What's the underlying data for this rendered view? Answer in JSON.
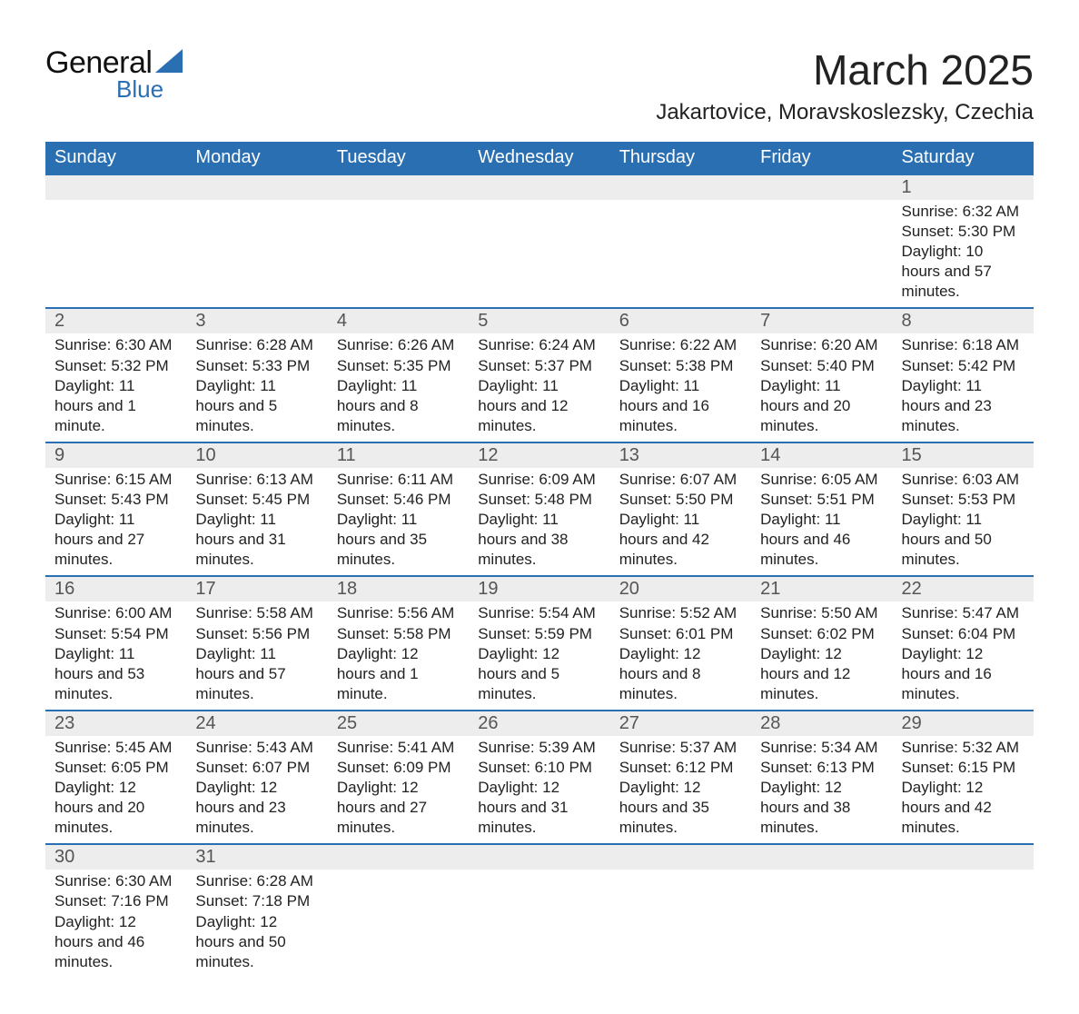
{
  "logo": {
    "text1": "General",
    "text2": "Blue",
    "tri_color": "#2b6fb3"
  },
  "title": {
    "month": "March 2025",
    "location": "Jakartovice, Moravskoslezsky, Czechia"
  },
  "header_bg": "#2b6fb3",
  "header_fg": "#ffffff",
  "row_sep_color": "#2b6fb3",
  "daynum_bg": "#ededed",
  "weekdays": [
    "Sunday",
    "Monday",
    "Tuesday",
    "Wednesday",
    "Thursday",
    "Friday",
    "Saturday"
  ],
  "weeks": [
    [
      null,
      null,
      null,
      null,
      null,
      null,
      {
        "n": "1",
        "sunrise": "6:32 AM",
        "sunset": "5:30 PM",
        "daylight": "10 hours and 57 minutes."
      }
    ],
    [
      {
        "n": "2",
        "sunrise": "6:30 AM",
        "sunset": "5:32 PM",
        "daylight": "11 hours and 1 minute."
      },
      {
        "n": "3",
        "sunrise": "6:28 AM",
        "sunset": "5:33 PM",
        "daylight": "11 hours and 5 minutes."
      },
      {
        "n": "4",
        "sunrise": "6:26 AM",
        "sunset": "5:35 PM",
        "daylight": "11 hours and 8 minutes."
      },
      {
        "n": "5",
        "sunrise": "6:24 AM",
        "sunset": "5:37 PM",
        "daylight": "11 hours and 12 minutes."
      },
      {
        "n": "6",
        "sunrise": "6:22 AM",
        "sunset": "5:38 PM",
        "daylight": "11 hours and 16 minutes."
      },
      {
        "n": "7",
        "sunrise": "6:20 AM",
        "sunset": "5:40 PM",
        "daylight": "11 hours and 20 minutes."
      },
      {
        "n": "8",
        "sunrise": "6:18 AM",
        "sunset": "5:42 PM",
        "daylight": "11 hours and 23 minutes."
      }
    ],
    [
      {
        "n": "9",
        "sunrise": "6:15 AM",
        "sunset": "5:43 PM",
        "daylight": "11 hours and 27 minutes."
      },
      {
        "n": "10",
        "sunrise": "6:13 AM",
        "sunset": "5:45 PM",
        "daylight": "11 hours and 31 minutes."
      },
      {
        "n": "11",
        "sunrise": "6:11 AM",
        "sunset": "5:46 PM",
        "daylight": "11 hours and 35 minutes."
      },
      {
        "n": "12",
        "sunrise": "6:09 AM",
        "sunset": "5:48 PM",
        "daylight": "11 hours and 38 minutes."
      },
      {
        "n": "13",
        "sunrise": "6:07 AM",
        "sunset": "5:50 PM",
        "daylight": "11 hours and 42 minutes."
      },
      {
        "n": "14",
        "sunrise": "6:05 AM",
        "sunset": "5:51 PM",
        "daylight": "11 hours and 46 minutes."
      },
      {
        "n": "15",
        "sunrise": "6:03 AM",
        "sunset": "5:53 PM",
        "daylight": "11 hours and 50 minutes."
      }
    ],
    [
      {
        "n": "16",
        "sunrise": "6:00 AM",
        "sunset": "5:54 PM",
        "daylight": "11 hours and 53 minutes."
      },
      {
        "n": "17",
        "sunrise": "5:58 AM",
        "sunset": "5:56 PM",
        "daylight": "11 hours and 57 minutes."
      },
      {
        "n": "18",
        "sunrise": "5:56 AM",
        "sunset": "5:58 PM",
        "daylight": "12 hours and 1 minute."
      },
      {
        "n": "19",
        "sunrise": "5:54 AM",
        "sunset": "5:59 PM",
        "daylight": "12 hours and 5 minutes."
      },
      {
        "n": "20",
        "sunrise": "5:52 AM",
        "sunset": "6:01 PM",
        "daylight": "12 hours and 8 minutes."
      },
      {
        "n": "21",
        "sunrise": "5:50 AM",
        "sunset": "6:02 PM",
        "daylight": "12 hours and 12 minutes."
      },
      {
        "n": "22",
        "sunrise": "5:47 AM",
        "sunset": "6:04 PM",
        "daylight": "12 hours and 16 minutes."
      }
    ],
    [
      {
        "n": "23",
        "sunrise": "5:45 AM",
        "sunset": "6:05 PM",
        "daylight": "12 hours and 20 minutes."
      },
      {
        "n": "24",
        "sunrise": "5:43 AM",
        "sunset": "6:07 PM",
        "daylight": "12 hours and 23 minutes."
      },
      {
        "n": "25",
        "sunrise": "5:41 AM",
        "sunset": "6:09 PM",
        "daylight": "12 hours and 27 minutes."
      },
      {
        "n": "26",
        "sunrise": "5:39 AM",
        "sunset": "6:10 PM",
        "daylight": "12 hours and 31 minutes."
      },
      {
        "n": "27",
        "sunrise": "5:37 AM",
        "sunset": "6:12 PM",
        "daylight": "12 hours and 35 minutes."
      },
      {
        "n": "28",
        "sunrise": "5:34 AM",
        "sunset": "6:13 PM",
        "daylight": "12 hours and 38 minutes."
      },
      {
        "n": "29",
        "sunrise": "5:32 AM",
        "sunset": "6:15 PM",
        "daylight": "12 hours and 42 minutes."
      }
    ],
    [
      {
        "n": "30",
        "sunrise": "6:30 AM",
        "sunset": "7:16 PM",
        "daylight": "12 hours and 46 minutes."
      },
      {
        "n": "31",
        "sunrise": "6:28 AM",
        "sunset": "7:18 PM",
        "daylight": "12 hours and 50 minutes."
      },
      null,
      null,
      null,
      null,
      null
    ]
  ],
  "labels": {
    "sunrise": "Sunrise: ",
    "sunset": "Sunset: ",
    "daylight": "Daylight: "
  }
}
